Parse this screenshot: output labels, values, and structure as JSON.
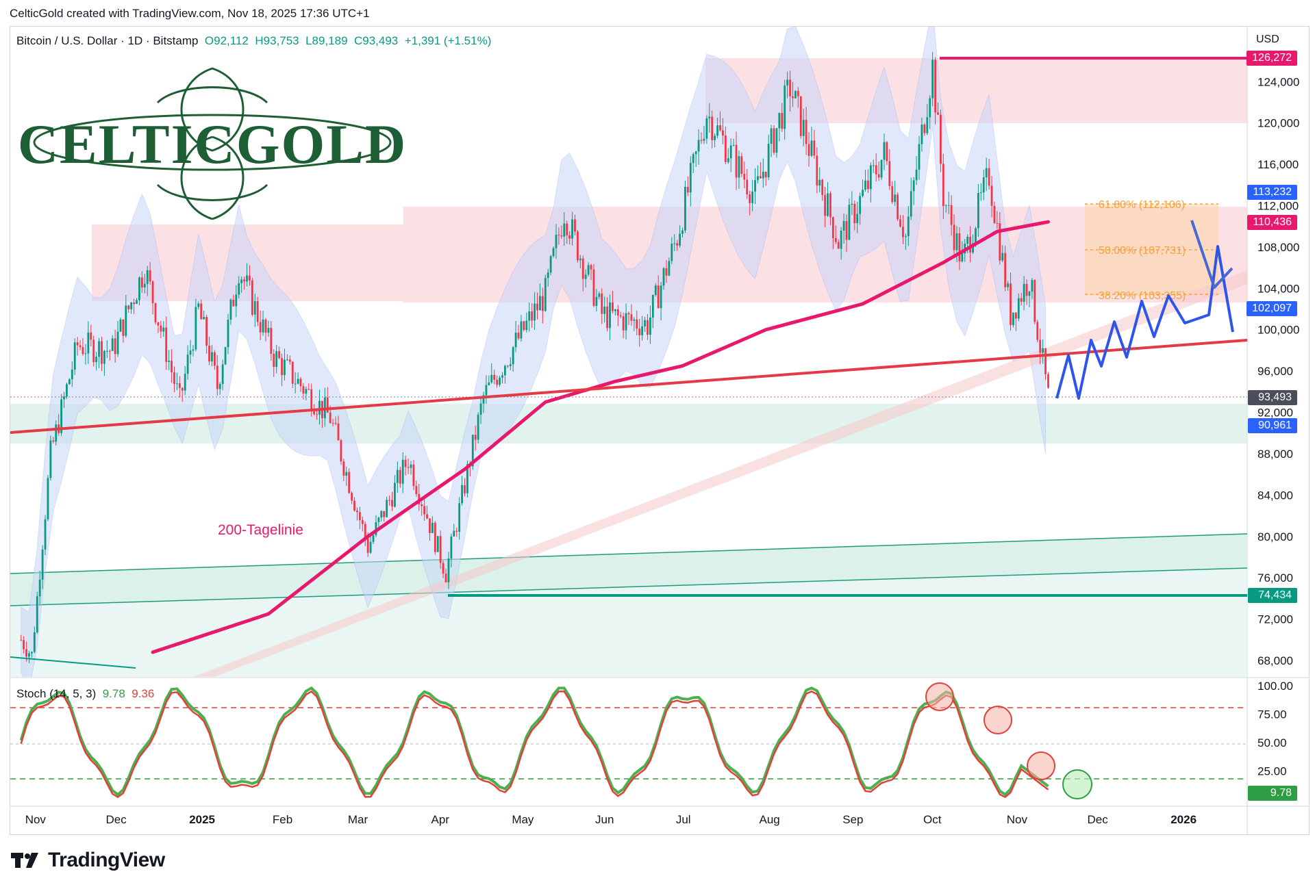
{
  "header": {
    "attribution": "CelticGold created with TradingView.com, Nov 18, 2025 17:36 UTC+1"
  },
  "symbol": {
    "name": "Bitcoin / U.S. Dollar · 1D · Bitstamp",
    "open": "O92,112",
    "high": "H93,753",
    "low": "L89,189",
    "close": "C93,493",
    "change": "+1,391 (+1.51%)"
  },
  "currency": "USD",
  "logo_text": "CELTICGOLD",
  "price_axis": [
    "124,000",
    "120,000",
    "116,000",
    "112,000",
    "108,000",
    "104,000",
    "100,000",
    "96,000",
    "92,000",
    "88,000",
    "84,000",
    "80,000",
    "76,000",
    "72,000",
    "68,000"
  ],
  "stoch_axis": [
    "100.00",
    "75.00",
    "50.00",
    "25.00"
  ],
  "time_axis": [
    "Nov",
    "Dec",
    "2025",
    "Feb",
    "Mar",
    "Apr",
    "May",
    "Jun",
    "Jul",
    "Aug",
    "Sep",
    "Oct",
    "Nov",
    "Dec",
    "2026"
  ],
  "price_tags": {
    "top": "126,272",
    "t113": "113,232",
    "t110": "110,436",
    "t102": "102,097",
    "t93": "93,493",
    "t92": "92,000",
    "t90": "90,961",
    "t74": "74,434"
  },
  "stoch_tags": {
    "k": "9.78",
    "d": "9.36"
  },
  "fib": {
    "f618": "61.80% (112,106)",
    "f50": "50.00% (107,731)",
    "f382": "38.20% (103,355)"
  },
  "annotation_ma": "200-Tagelinie",
  "stoch_label": {
    "name": "Stoch (14, 5, 3)",
    "k": "9.78",
    "d": "9.36"
  },
  "footer": {
    "brand": "TradingView"
  },
  "colors": {
    "up": "#089981",
    "down": "#f23645",
    "ma": "#e8196c",
    "forecast": "#2962ff"
  },
  "chart_data": {
    "type": "candlestick",
    "symbol": "BTCUSD",
    "timeframe": "1D",
    "ylim": [
      66000,
      128500
    ],
    "close_path": [
      {
        "date": "2024-11-01",
        "close": 70000
      },
      {
        "date": "2024-11-05",
        "close": 68500
      },
      {
        "date": "2024-11-12",
        "close": 88000
      },
      {
        "date": "2024-11-22",
        "close": 98500
      },
      {
        "date": "2024-12-05",
        "close": 98000
      },
      {
        "date": "2024-12-17",
        "close": 106000
      },
      {
        "date": "2024-12-30",
        "close": 93000
      },
      {
        "date": "2025-01-06",
        "close": 102000
      },
      {
        "date": "2025-01-13",
        "close": 94500
      },
      {
        "date": "2025-01-21",
        "close": 106000
      },
      {
        "date": "2025-02-03",
        "close": 97500
      },
      {
        "date": "2025-02-24",
        "close": 91500
      },
      {
        "date": "2025-03-10",
        "close": 79000
      },
      {
        "date": "2025-03-25",
        "close": 87500
      },
      {
        "date": "2025-04-08",
        "close": 76500
      },
      {
        "date": "2025-04-22",
        "close": 93500
      },
      {
        "date": "2025-05-15",
        "close": 103500
      },
      {
        "date": "2025-05-22",
        "close": 111500
      },
      {
        "date": "2025-06-05",
        "close": 101500
      },
      {
        "date": "2025-06-22",
        "close": 100500
      },
      {
        "date": "2025-07-03",
        "close": 109000
      },
      {
        "date": "2025-07-14",
        "close": 121000
      },
      {
        "date": "2025-08-01",
        "close": 113000
      },
      {
        "date": "2025-08-14",
        "close": 123500
      },
      {
        "date": "2025-09-01",
        "close": 108500
      },
      {
        "date": "2025-09-18",
        "close": 117000
      },
      {
        "date": "2025-09-26",
        "close": 109000
      },
      {
        "date": "2025-10-06",
        "close": 125500
      },
      {
        "date": "2025-10-10",
        "close": 113000
      },
      {
        "date": "2025-10-17",
        "close": 106500
      },
      {
        "date": "2025-10-27",
        "close": 115000
      },
      {
        "date": "2025-11-04",
        "close": 101500
      },
      {
        "date": "2025-11-11",
        "close": 105000
      },
      {
        "date": "2025-11-18",
        "close": 93493
      }
    ],
    "levels": {
      "resistance_high": 126272,
      "support_low": 74434,
      "ma200": 110436,
      "fib_618": 112106,
      "fib_50": 107731,
      "fib_382": 103355
    },
    "stochastic": {
      "params": "14, 5, 3",
      "k": 9.78,
      "d": 9.36,
      "overbought": 80,
      "oversold": 20
    }
  }
}
